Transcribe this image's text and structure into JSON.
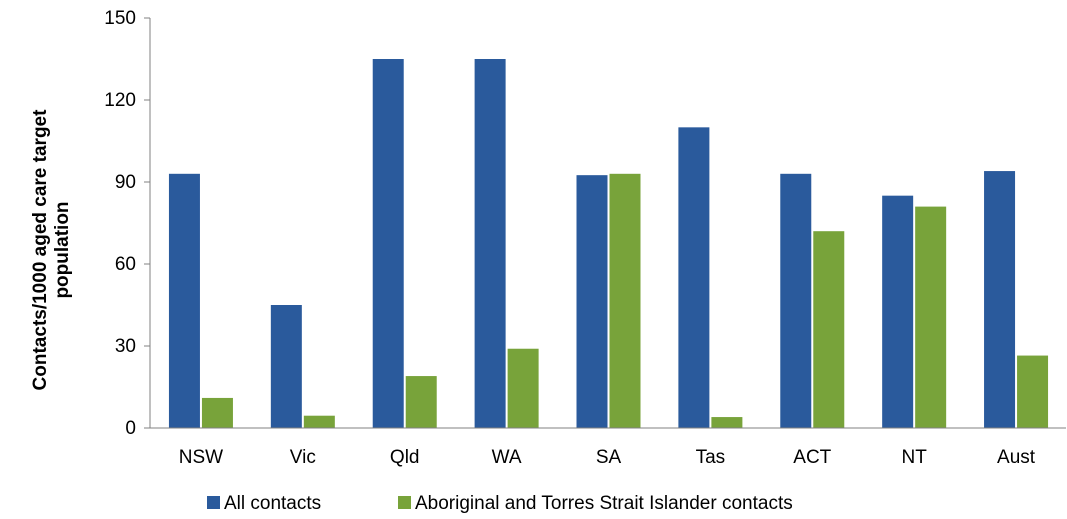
{
  "chart_data": {
    "type": "bar",
    "categories": [
      "NSW",
      "Vic",
      "Qld",
      "WA",
      "SA",
      "Tas",
      "ACT",
      "NT",
      "Aust"
    ],
    "series": [
      {
        "name": "All contacts",
        "color": "#2a5a9c",
        "values": [
          93,
          45,
          135,
          135,
          92.5,
          110,
          93,
          85,
          94
        ]
      },
      {
        "name": "Aboriginal and Torres Strait Islander contacts",
        "color": "#78a33a",
        "values": [
          11,
          4.5,
          19,
          29,
          93,
          4,
          72,
          81,
          26.5
        ]
      }
    ],
    "title": "",
    "xlabel": "",
    "ylabel_lines": [
      "Contacts/1000 aged care target",
      "population"
    ],
    "ylim": [
      0,
      150
    ],
    "yticks": [
      0,
      30,
      60,
      90,
      120,
      150
    ],
    "grid": false,
    "legend_position": "bottom"
  }
}
